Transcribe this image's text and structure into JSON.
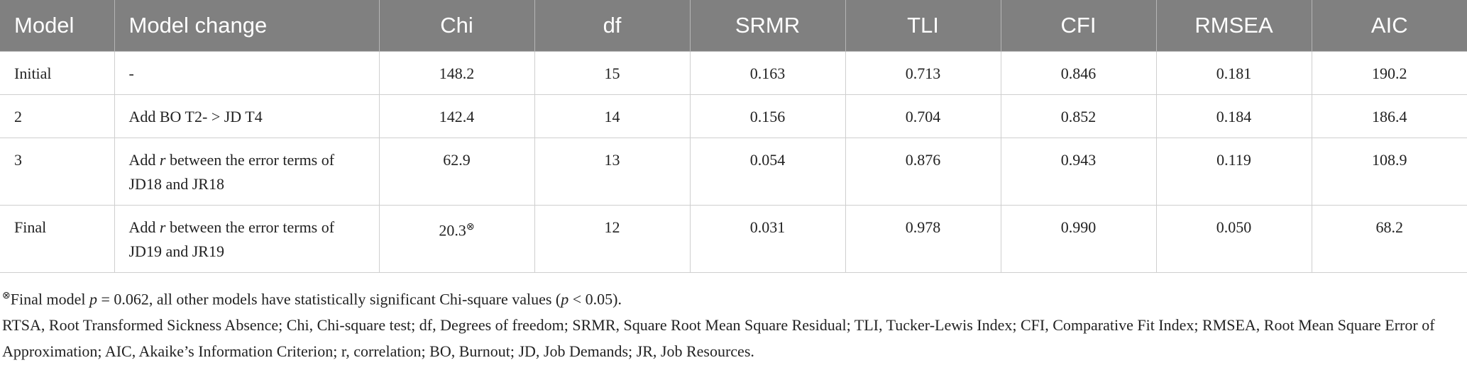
{
  "table": {
    "header": [
      "Model",
      "Model change",
      "Chi",
      "df",
      "SRMR",
      "TLI",
      "CFI",
      "RMSEA",
      "AIC"
    ],
    "rows": [
      [
        "Initial",
        "-",
        "148.2",
        "15",
        "0.163",
        "0.713",
        "0.846",
        "0.181",
        "190.2"
      ],
      [
        "2",
        "Add BO T2- > JD T4",
        "142.4",
        "14",
        "0.156",
        "0.704",
        "0.852",
        "0.184",
        "186.4"
      ],
      [
        "3",
        [
          "Add ",
          "r",
          " between the error terms of JD18 and JR18"
        ],
        "62.9",
        "13",
        "0.054",
        "0.876",
        "0.943",
        "0.119",
        "108.9"
      ],
      [
        "Final",
        [
          "Add ",
          "r",
          " between the error terms of JD19 and JR19"
        ],
        {
          "text": "20.3",
          "mark": "⊗"
        },
        "12",
        "0.031",
        "0.978",
        "0.990",
        "0.050",
        "68.2"
      ]
    ]
  },
  "footnotes": [
    {
      "mark": "⊗",
      "text": [
        "Final model ",
        "p",
        " = 0.062, all other models have statistically significant Chi-square values (",
        "p",
        " < 0.05)."
      ]
    },
    {
      "text": [
        "RTSA, Root Transformed Sickness Absence; Chi, Chi-square test; df, Degrees of freedom; SRMR, Square Root Mean Square Residual; TLI, Tucker-Lewis Index; CFI, Comparative Fit Index; RMSEA, Root Mean Square Error of Approximation; AIC, Akaike’s Information Criterion; r, correlation; BO, Burnout; JD, Job Demands; JR, Job Resources."
      ]
    }
  ]
}
